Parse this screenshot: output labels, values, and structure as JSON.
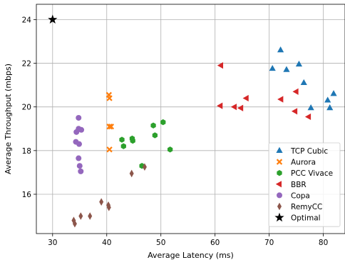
{
  "chart_data": {
    "type": "scatter",
    "title": "",
    "xlabel": "Average Latency (ms)",
    "ylabel": "Average Throughput (mbps)",
    "xlim": [
      27,
      84
    ],
    "ylim": [
      14.2,
      24.7
    ],
    "xticks": [
      30,
      40,
      50,
      60,
      70,
      80
    ],
    "yticks": [
      16,
      18,
      20,
      22,
      24
    ],
    "grid": true,
    "legend_position": "lower-right",
    "series": [
      {
        "name": "TCP Cubic",
        "marker": "triangle-up",
        "color": "#1f77b4",
        "points": [
          [
            70.6,
            21.75
          ],
          [
            72.1,
            22.6
          ],
          [
            73.2,
            21.7
          ],
          [
            75.5,
            21.95
          ],
          [
            76.4,
            21.1
          ],
          [
            77.7,
            19.95
          ],
          [
            80.8,
            20.3
          ],
          [
            81.2,
            19.95
          ],
          [
            81.9,
            20.6
          ]
        ]
      },
      {
        "name": "Aurora",
        "marker": "x",
        "color": "#ff7f0e",
        "points": [
          [
            40.4,
            20.55
          ],
          [
            40.5,
            20.4
          ],
          [
            40.5,
            19.1
          ],
          [
            40.8,
            19.1
          ],
          [
            40.5,
            18.05
          ]
        ]
      },
      {
        "name": "PCC Vivace",
        "marker": "hexagon",
        "color": "#2ca02c",
        "points": [
          [
            42.8,
            18.5
          ],
          [
            43.1,
            18.2
          ],
          [
            44.7,
            18.55
          ],
          [
            44.8,
            18.45
          ],
          [
            48.6,
            19.15
          ],
          [
            48.9,
            18.7
          ],
          [
            50.4,
            19.3
          ],
          [
            51.7,
            18.05
          ],
          [
            46.5,
            17.3
          ]
        ]
      },
      {
        "name": "BBR",
        "marker": "triangle-left",
        "color": "#d62728",
        "points": [
          [
            61.1,
            21.9
          ],
          [
            61.0,
            20.05
          ],
          [
            63.6,
            20.0
          ],
          [
            64.8,
            19.95
          ],
          [
            65.8,
            20.4
          ],
          [
            72.2,
            20.35
          ],
          [
            75.0,
            20.7
          ],
          [
            74.8,
            19.8
          ],
          [
            77.3,
            19.55
          ]
        ]
      },
      {
        "name": "Copa",
        "marker": "circle",
        "color": "#9467bd",
        "points": [
          [
            34.8,
            19.5
          ],
          [
            34.4,
            18.85
          ],
          [
            34.8,
            19.0
          ],
          [
            35.3,
            18.95
          ],
          [
            34.3,
            18.4
          ],
          [
            34.9,
            18.3
          ],
          [
            34.8,
            17.65
          ],
          [
            35.0,
            17.3
          ],
          [
            35.2,
            17.05
          ]
        ]
      },
      {
        "name": "RemyCC",
        "marker": "thin-diamond",
        "color": "#8c564b",
        "points": [
          [
            33.9,
            14.8
          ],
          [
            34.1,
            14.65
          ],
          [
            35.2,
            15.0
          ],
          [
            36.9,
            15.0
          ],
          [
            39.0,
            15.65
          ],
          [
            40.3,
            15.5
          ],
          [
            40.4,
            15.4
          ],
          [
            44.6,
            16.95
          ],
          [
            47.0,
            17.25
          ]
        ]
      },
      {
        "name": "Optimal",
        "marker": "star",
        "color": "#000000",
        "points": [
          [
            30.0,
            24.0
          ]
        ]
      }
    ]
  }
}
